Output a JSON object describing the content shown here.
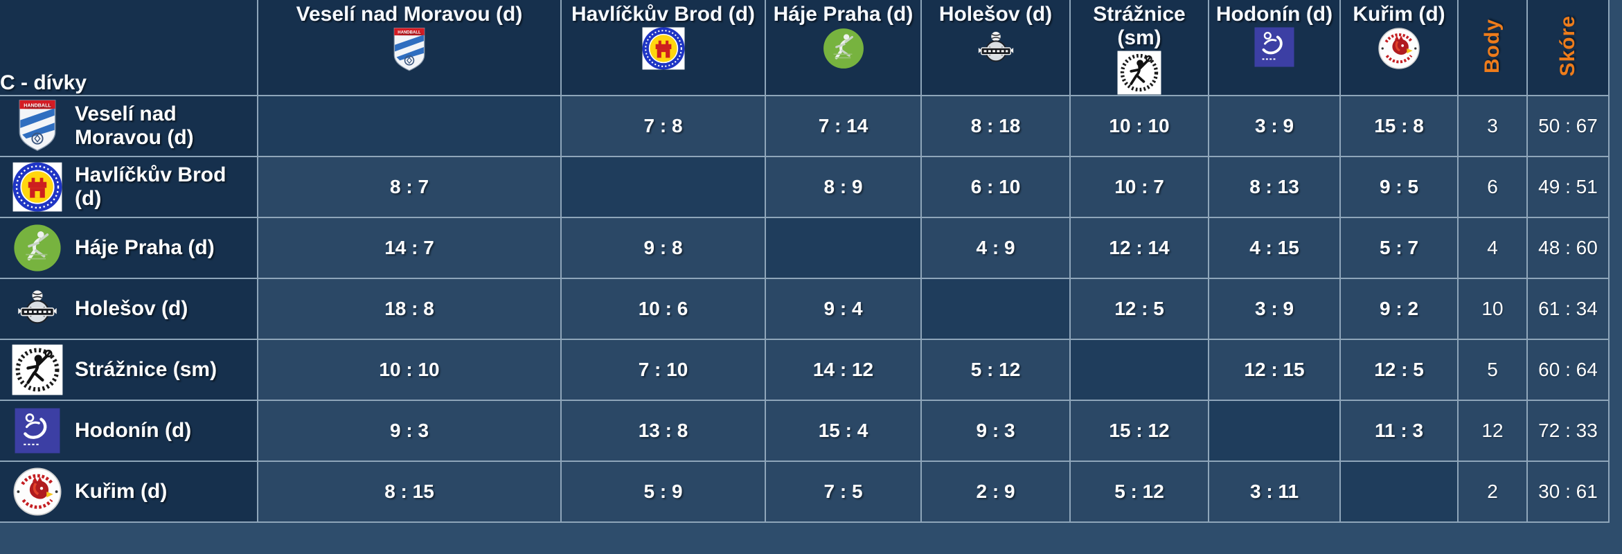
{
  "colors": {
    "page_background": "#2e4d6c",
    "header_background": "#16304d",
    "cell_background": "#2b4866",
    "diagonal_cell_background": "#1f3d5c",
    "grid_line": "#8fa6ba",
    "accent_orange": "#ee7c1b",
    "text_white": "#ffffff"
  },
  "table": {
    "title": "C - dívky",
    "points_header": "Body",
    "score_header": "Skóre",
    "teams": [
      {
        "name": "Veselí nad Moravou (d)",
        "logo": "veseli-nad-moravou-shield-logo-icon"
      },
      {
        "name": "Havlíčkův Brod (d)",
        "logo": "havlickuv-brod-badge-logo-icon"
      },
      {
        "name": "Háje Praha (d)",
        "logo": "haje-praha-badge-logo-icon"
      },
      {
        "name": "Holešov (d)",
        "logo": "holesov-badge-logo-icon"
      },
      {
        "name": "Strážnice (sm)",
        "logo": "straznice-badge-logo-icon"
      },
      {
        "name": "Hodonín (d)",
        "logo": "hodonin-badge-logo-icon"
      },
      {
        "name": "Kuřim (d)",
        "logo": "kurim-badge-logo-icon"
      }
    ],
    "results": [
      [
        null,
        "7 : 8",
        "7 : 14",
        "8 : 18",
        "10 : 10",
        "3 : 9",
        "15 : 8"
      ],
      [
        "8 : 7",
        null,
        "8 : 9",
        "6 : 10",
        "10 : 7",
        "8 : 13",
        "9 : 5"
      ],
      [
        "14 : 7",
        "9 : 8",
        null,
        "4 : 9",
        "12 : 14",
        "4 : 15",
        "5 : 7"
      ],
      [
        "18 : 8",
        "10 : 6",
        "9 : 4",
        null,
        "12 : 5",
        "3 : 9",
        "9 : 2"
      ],
      [
        "10 : 10",
        "7 : 10",
        "14 : 12",
        "5 : 12",
        null,
        "12 : 15",
        "12 : 5"
      ],
      [
        "9 : 3",
        "13 : 8",
        "15 : 4",
        "9 : 3",
        "15 : 12",
        null,
        "11 : 3"
      ],
      [
        "8 : 15",
        "5 : 9",
        "7 : 5",
        "2 : 9",
        "5 : 12",
        "3 : 11",
        null
      ]
    ],
    "points": [
      3,
      6,
      4,
      10,
      5,
      12,
      2
    ],
    "score_totals": [
      "50 : 67",
      "49 : 51",
      "48 : 60",
      "61 : 34",
      "60 : 64",
      "72 : 33",
      "30 : 61"
    ]
  }
}
